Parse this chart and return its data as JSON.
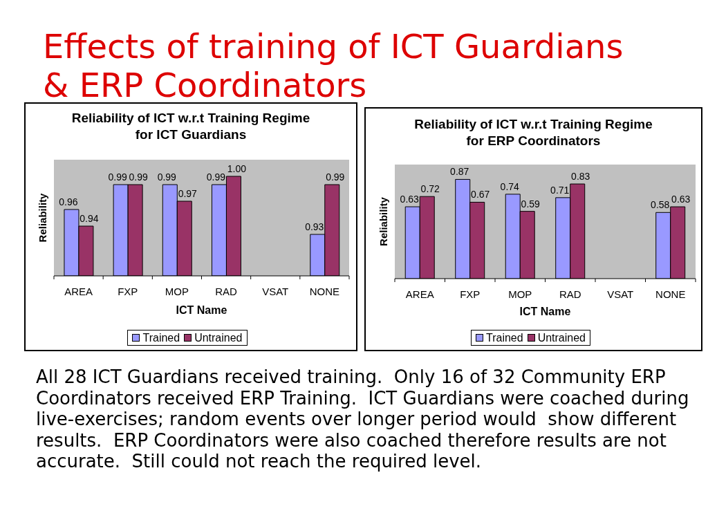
{
  "chart_data": [
    {
      "type": "other",
      "title": "Effects of training of ICT Guardians & ERP Coordinators"
    },
    {
      "type": "bar",
      "title": "Reliability of ICT w.r.t Training Regime for ICT Guardians",
      "xlabel": "ICT Name",
      "ylabel": "Reliability",
      "categories": [
        "AREA",
        "FXP",
        "MOP",
        "RAD",
        "VSAT",
        "NONE"
      ],
      "series": [
        {
          "name": "Trained",
          "color": "#9999ff",
          "values": [
            0.96,
            0.99,
            0.99,
            0.99,
            null,
            0.93
          ],
          "value_labels": [
            "0.96",
            "0.99",
            "0.99",
            "0.99",
            null,
            "0.93"
          ]
        },
        {
          "name": "Untrained",
          "color": "#993366",
          "values": [
            0.94,
            0.99,
            0.97,
            1.0,
            null,
            0.99
          ],
          "value_labels": [
            "0.94",
            "0.99",
            "0.97",
            "1.00",
            null,
            "0.99"
          ]
        }
      ],
      "ylim": [
        0.88,
        1.02
      ],
      "tick_labels": "x",
      "legend": "bottom"
    },
    {
      "type": "bar",
      "title": "Reliability of ICT w.r.t Training Regime for ERP Coordinators",
      "xlabel": "ICT Name",
      "ylabel": "Reliability",
      "categories": [
        "AREA",
        "FXP",
        "MOP",
        "RAD",
        "VSAT",
        "NONE"
      ],
      "series": [
        {
          "name": "Trained",
          "color": "#9999ff",
          "values": [
            0.63,
            0.87,
            0.74,
            0.71,
            null,
            0.58
          ],
          "value_labels": [
            "0.63",
            "0.87",
            "0.74",
            "0.71",
            null,
            "0.58"
          ]
        },
        {
          "name": "Untrained",
          "color": "#993366",
          "values": [
            0.72,
            0.67,
            0.59,
            0.83,
            null,
            0.63
          ],
          "value_labels": [
            "0.72",
            "0.67",
            "0.59",
            "0.83",
            null,
            "0.63"
          ]
        }
      ],
      "ylim": [
        0,
        1
      ],
      "tick_labels": "x",
      "legend": "bottom"
    },
    {
      "type": "other",
      "annotations": [
        "All 28 ICT Guardians received training.  Only 16 of 32 Community ERP Coordinators received ERP Training.  ICT Guardians were coached during live-exercises; random events over longer period would  show different results.  ERP Coordinators were also coached therefore results are not accurate.  Still could not reach the required level."
      ]
    }
  ]
}
